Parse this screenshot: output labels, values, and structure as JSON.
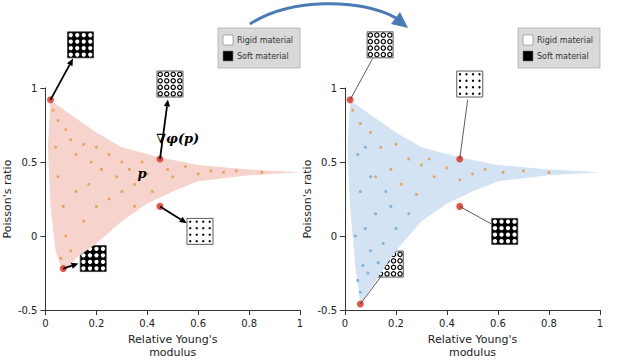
{
  "chart_data": [
    {
      "type": "scatter",
      "xlabel": "Relative Young's\nmodulus",
      "ylabel": "Poisson's ratio",
      "xlim": [
        0,
        1
      ],
      "ylim": [
        -0.5,
        1
      ],
      "xticks": [
        0,
        0.2,
        0.4,
        0.6,
        0.8,
        1
      ],
      "yticks": [
        -0.5,
        0,
        0.5,
        1
      ],
      "grid": false,
      "region": {
        "color": "#f6d3cc",
        "values": [
          [
            0.02,
            0.92
          ],
          [
            0.05,
            0.88
          ],
          [
            0.1,
            0.82
          ],
          [
            0.2,
            0.7
          ],
          [
            0.3,
            0.6
          ],
          [
            0.45,
            0.53
          ],
          [
            0.6,
            0.48
          ],
          [
            0.8,
            0.45
          ],
          [
            1.0,
            0.43
          ],
          [
            0.8,
            0.41
          ],
          [
            0.6,
            0.37
          ],
          [
            0.5,
            0.3
          ],
          [
            0.4,
            0.22
          ],
          [
            0.3,
            0.1
          ],
          [
            0.2,
            -0.05
          ],
          [
            0.12,
            -0.15
          ],
          [
            0.07,
            -0.25
          ],
          [
            0.04,
            -0.1
          ],
          [
            0.02,
            0.2
          ],
          [
            0.01,
            0.6
          ]
        ]
      },
      "series": [
        {
          "color": "#e59a4a",
          "marker": "circle",
          "values": [
            [
              0.03,
              0.85
            ],
            [
              0.05,
              0.78
            ],
            [
              0.08,
              0.72
            ],
            [
              0.1,
              0.65
            ],
            [
              0.12,
              0.55
            ],
            [
              0.15,
              0.62
            ],
            [
              0.18,
              0.5
            ],
            [
              0.2,
              0.6
            ],
            [
              0.22,
              0.45
            ],
            [
              0.25,
              0.55
            ],
            [
              0.28,
              0.4
            ],
            [
              0.3,
              0.5
            ],
            [
              0.33,
              0.45
            ],
            [
              0.35,
              0.35
            ],
            [
              0.38,
              0.5
            ],
            [
              0.4,
              0.42
            ],
            [
              0.42,
              0.3
            ],
            [
              0.48,
              0.45
            ],
            [
              0.5,
              0.4
            ],
            [
              0.55,
              0.47
            ],
            [
              0.6,
              0.42
            ],
            [
              0.65,
              0.44
            ],
            [
              0.7,
              0.43
            ],
            [
              0.75,
              0.44
            ],
            [
              0.85,
              0.43
            ],
            [
              0.05,
              0.4
            ],
            [
              0.07,
              0.2
            ],
            [
              0.08,
              0.0
            ],
            [
              0.1,
              -0.1
            ],
            [
              0.12,
              0.3
            ],
            [
              0.15,
              0.1
            ],
            [
              0.2,
              0.2
            ],
            [
              0.25,
              0.25
            ],
            [
              0.3,
              0.3
            ],
            [
              0.04,
              0.6
            ],
            [
              0.06,
              -0.15
            ],
            [
              0.17,
              0.35
            ],
            [
              0.35,
              0.2
            ]
          ]
        }
      ],
      "highlights": {
        "color": "#d7301f",
        "values": [
          [
            0.02,
            0.92
          ],
          [
            0.45,
            0.52
          ],
          [
            0.45,
            0.2
          ],
          [
            0.07,
            -0.22
          ]
        ]
      },
      "annotations": [
        {
          "text": "p",
          "x": 0.38,
          "y": 0.42
        },
        {
          "text": "∇φ(p)",
          "x": 0.52,
          "y": 0.66
        }
      ],
      "material_key": [
        {
          "label": "Rigid material",
          "color": "#ffffff"
        },
        {
          "label": "Soft material",
          "color": "#000000"
        }
      ]
    },
    {
      "type": "scatter",
      "xlabel": "Relative Young's\nmodulus",
      "ylabel": "Poisson's ratio",
      "xlim": [
        0,
        1
      ],
      "ylim": [
        -0.5,
        1
      ],
      "xticks": [
        0,
        0.2,
        0.4,
        0.6,
        0.8,
        1
      ],
      "yticks": [
        -0.5,
        0,
        0.5,
        1
      ],
      "grid": false,
      "region": {
        "color": "#d3e3f3",
        "values": [
          [
            0.02,
            0.92
          ],
          [
            0.05,
            0.88
          ],
          [
            0.1,
            0.82
          ],
          [
            0.2,
            0.7
          ],
          [
            0.3,
            0.6
          ],
          [
            0.45,
            0.53
          ],
          [
            0.6,
            0.48
          ],
          [
            0.8,
            0.45
          ],
          [
            1.0,
            0.43
          ],
          [
            0.8,
            0.41
          ],
          [
            0.6,
            0.37
          ],
          [
            0.5,
            0.3
          ],
          [
            0.4,
            0.22
          ],
          [
            0.3,
            0.1
          ],
          [
            0.2,
            -0.1
          ],
          [
            0.12,
            -0.3
          ],
          [
            0.06,
            -0.46
          ],
          [
            0.04,
            -0.2
          ],
          [
            0.02,
            0.2
          ],
          [
            0.01,
            0.6
          ]
        ]
      },
      "series": [
        {
          "color": "#e59a4a",
          "marker": "circle",
          "values": [
            [
              0.03,
              0.85
            ],
            [
              0.06,
              0.76
            ],
            [
              0.1,
              0.7
            ],
            [
              0.14,
              0.6
            ],
            [
              0.2,
              0.62
            ],
            [
              0.25,
              0.52
            ],
            [
              0.3,
              0.48
            ],
            [
              0.35,
              0.4
            ],
            [
              0.4,
              0.46
            ],
            [
              0.45,
              0.38
            ],
            [
              0.5,
              0.42
            ],
            [
              0.55,
              0.45
            ],
            [
              0.62,
              0.43
            ],
            [
              0.7,
              0.44
            ],
            [
              0.8,
              0.43
            ],
            [
              0.22,
              0.35
            ],
            [
              0.28,
              0.28
            ],
            [
              0.18,
              0.45
            ],
            [
              0.33,
              0.52
            ],
            [
              0.12,
              0.4
            ]
          ]
        },
        {
          "color": "#6fa8dc",
          "marker": "circle",
          "values": [
            [
              0.05,
              -0.3
            ],
            [
              0.07,
              -0.2
            ],
            [
              0.1,
              -0.1
            ],
            [
              0.08,
              0.05
            ],
            [
              0.12,
              0.15
            ],
            [
              0.15,
              -0.05
            ],
            [
              0.2,
              0.05
            ],
            [
              0.06,
              0.3
            ],
            [
              0.1,
              0.4
            ],
            [
              0.04,
              0.0
            ],
            [
              0.06,
              -0.38
            ],
            [
              0.09,
              -0.25
            ],
            [
              0.13,
              -0.18
            ],
            [
              0.18,
              0.2
            ],
            [
              0.25,
              0.15
            ],
            [
              0.05,
              0.55
            ],
            [
              0.08,
              0.6
            ],
            [
              0.16,
              0.3
            ]
          ]
        }
      ],
      "highlights": {
        "color": "#d7301f",
        "values": [
          [
            0.02,
            0.92
          ],
          [
            0.45,
            0.52
          ],
          [
            0.45,
            0.2
          ],
          [
            0.06,
            -0.46
          ]
        ]
      },
      "material_key": [
        {
          "label": "Rigid material",
          "color": "#ffffff"
        },
        {
          "label": "Soft material",
          "color": "#000000"
        }
      ]
    }
  ]
}
